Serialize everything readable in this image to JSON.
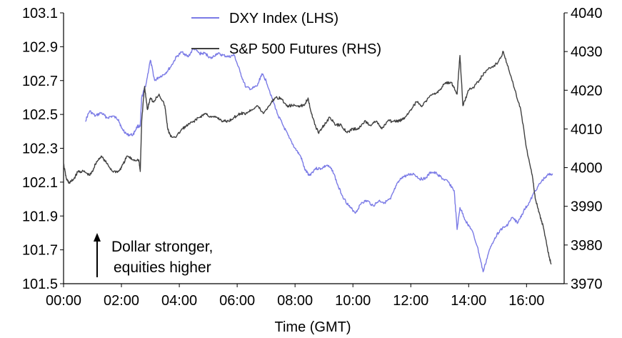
{
  "chart_data": {
    "type": "line",
    "xlabel": "Time (GMT)",
    "x_ticks": [
      "00:00",
      "02:00",
      "04:00",
      "06:00",
      "08:00",
      "10:00",
      "12:00",
      "14:00",
      "16:00"
    ],
    "x_range_hours": [
      0,
      17.3
    ],
    "y_left": {
      "ticks": [
        "101.5",
        "101.7",
        "101.9",
        "102.1",
        "102.3",
        "102.5",
        "102.7",
        "102.9",
        "103.1"
      ],
      "range": [
        101.5,
        103.1
      ]
    },
    "y_right": {
      "ticks": [
        "3970",
        "3980",
        "3990",
        "4000",
        "4010",
        "4020",
        "4030",
        "4040"
      ],
      "range": [
        3970,
        4040
      ]
    },
    "legend": {
      "position": "top-center",
      "items": [
        "DXY Index (LHS)",
        "S&P 500 Futures (RHS)"
      ]
    },
    "annotation": {
      "lines": [
        "Dollar stronger,",
        "equities higher"
      ],
      "arrow": "up"
    },
    "series": [
      {
        "name": "DXY Index (LHS)",
        "axis": "left",
        "color": "#7b7be6",
        "points": [
          [
            0.75,
            102.46
          ],
          [
            0.9,
            102.52
          ],
          [
            1.1,
            102.49
          ],
          [
            1.3,
            102.51
          ],
          [
            1.5,
            102.48
          ],
          [
            1.7,
            102.49
          ],
          [
            1.9,
            102.47
          ],
          [
            2.0,
            102.42
          ],
          [
            2.2,
            102.38
          ],
          [
            2.4,
            102.38
          ],
          [
            2.55,
            102.43
          ],
          [
            2.65,
            102.43
          ],
          [
            2.7,
            102.6
          ],
          [
            2.85,
            102.68
          ],
          [
            3.0,
            102.82
          ],
          [
            3.15,
            102.7
          ],
          [
            3.3,
            102.72
          ],
          [
            3.5,
            102.74
          ],
          [
            3.7,
            102.78
          ],
          [
            3.9,
            102.84
          ],
          [
            4.1,
            102.87
          ],
          [
            4.3,
            102.84
          ],
          [
            4.5,
            102.89
          ],
          [
            4.7,
            102.86
          ],
          [
            4.9,
            102.86
          ],
          [
            5.1,
            102.83
          ],
          [
            5.3,
            102.86
          ],
          [
            5.5,
            102.85
          ],
          [
            5.7,
            102.84
          ],
          [
            5.9,
            102.85
          ],
          [
            6.1,
            102.75
          ],
          [
            6.3,
            102.66
          ],
          [
            6.5,
            102.65
          ],
          [
            6.7,
            102.67
          ],
          [
            6.85,
            102.74
          ],
          [
            7.0,
            102.7
          ],
          [
            7.2,
            102.6
          ],
          [
            7.4,
            102.5
          ],
          [
            7.6,
            102.43
          ],
          [
            7.8,
            102.36
          ],
          [
            8.0,
            102.3
          ],
          [
            8.2,
            102.25
          ],
          [
            8.35,
            102.17
          ],
          [
            8.5,
            102.14
          ],
          [
            8.7,
            102.18
          ],
          [
            8.9,
            102.18
          ],
          [
            9.1,
            102.2
          ],
          [
            9.3,
            102.17
          ],
          [
            9.5,
            102.07
          ],
          [
            9.7,
            102.0
          ],
          [
            9.9,
            101.95
          ],
          [
            10.1,
            101.92
          ],
          [
            10.3,
            101.98
          ],
          [
            10.5,
            101.99
          ],
          [
            10.7,
            101.96
          ],
          [
            10.9,
            101.99
          ],
          [
            11.1,
            101.98
          ],
          [
            11.3,
            102.0
          ],
          [
            11.5,
            102.08
          ],
          [
            11.7,
            102.13
          ],
          [
            11.9,
            102.14
          ],
          [
            12.1,
            102.15
          ],
          [
            12.3,
            102.12
          ],
          [
            12.5,
            102.12
          ],
          [
            12.7,
            102.16
          ],
          [
            12.9,
            102.15
          ],
          [
            13.1,
            102.12
          ],
          [
            13.3,
            102.1
          ],
          [
            13.5,
            102.05
          ],
          [
            13.6,
            101.82
          ],
          [
            13.7,
            101.95
          ],
          [
            13.9,
            101.87
          ],
          [
            14.1,
            101.82
          ],
          [
            14.3,
            101.72
          ],
          [
            14.5,
            101.57
          ],
          [
            14.7,
            101.69
          ],
          [
            14.9,
            101.77
          ],
          [
            15.1,
            101.82
          ],
          [
            15.3,
            101.84
          ],
          [
            15.5,
            101.89
          ],
          [
            15.7,
            101.86
          ],
          [
            15.9,
            101.93
          ],
          [
            16.1,
            101.98
          ],
          [
            16.3,
            102.05
          ],
          [
            16.5,
            102.1
          ],
          [
            16.7,
            102.14
          ],
          [
            16.9,
            102.15
          ]
        ]
      },
      {
        "name": "S&P 500 Futures (RHS)",
        "axis": "right",
        "color": "#404040",
        "points": [
          [
            0.0,
            4001
          ],
          [
            0.1,
            3997
          ],
          [
            0.2,
            3996
          ],
          [
            0.35,
            3997
          ],
          [
            0.5,
            3999
          ],
          [
            0.7,
            3999
          ],
          [
            0.9,
            3998
          ],
          [
            1.0,
            3999
          ],
          [
            1.1,
            4001
          ],
          [
            1.3,
            4003
          ],
          [
            1.5,
            4001
          ],
          [
            1.7,
            3999
          ],
          [
            1.9,
            3999
          ],
          [
            2.0,
            4000
          ],
          [
            2.2,
            4003
          ],
          [
            2.4,
            4002
          ],
          [
            2.6,
            4002
          ],
          [
            2.65,
            3999
          ],
          [
            2.7,
            4012
          ],
          [
            2.8,
            4021
          ],
          [
            2.9,
            4015
          ],
          [
            3.0,
            4018
          ],
          [
            3.1,
            4017
          ],
          [
            3.3,
            4019
          ],
          [
            3.5,
            4016
          ],
          [
            3.6,
            4010
          ],
          [
            3.7,
            4008
          ],
          [
            3.9,
            4008
          ],
          [
            4.1,
            4010
          ],
          [
            4.3,
            4011
          ],
          [
            4.5,
            4012
          ],
          [
            4.7,
            4013
          ],
          [
            4.9,
            4014
          ],
          [
            5.1,
            4013
          ],
          [
            5.3,
            4013
          ],
          [
            5.5,
            4012
          ],
          [
            5.7,
            4012
          ],
          [
            5.9,
            4013
          ],
          [
            6.1,
            4014
          ],
          [
            6.3,
            4014
          ],
          [
            6.5,
            4015
          ],
          [
            6.7,
            4016
          ],
          [
            6.9,
            4014
          ],
          [
            7.1,
            4016
          ],
          [
            7.3,
            4018
          ],
          [
            7.5,
            4018
          ],
          [
            7.7,
            4016
          ],
          [
            7.9,
            4016
          ],
          [
            8.1,
            4016
          ],
          [
            8.3,
            4016
          ],
          [
            8.45,
            4018
          ],
          [
            8.6,
            4013
          ],
          [
            8.8,
            4009
          ],
          [
            9.0,
            4011
          ],
          [
            9.2,
            4013
          ],
          [
            9.4,
            4011
          ],
          [
            9.6,
            4011
          ],
          [
            9.8,
            4009
          ],
          [
            10.0,
            4010
          ],
          [
            10.2,
            4010
          ],
          [
            10.4,
            4012
          ],
          [
            10.6,
            4011
          ],
          [
            10.8,
            4012
          ],
          [
            11.0,
            4010
          ],
          [
            11.2,
            4012
          ],
          [
            11.4,
            4012
          ],
          [
            11.6,
            4012
          ],
          [
            11.8,
            4013
          ],
          [
            12.0,
            4015
          ],
          [
            12.2,
            4017
          ],
          [
            12.4,
            4016
          ],
          [
            12.6,
            4018
          ],
          [
            12.8,
            4019
          ],
          [
            13.0,
            4020
          ],
          [
            13.2,
            4022
          ],
          [
            13.4,
            4022
          ],
          [
            13.6,
            4019
          ],
          [
            13.7,
            4029
          ],
          [
            13.8,
            4016
          ],
          [
            14.0,
            4020
          ],
          [
            14.2,
            4021
          ],
          [
            14.4,
            4023
          ],
          [
            14.6,
            4025
          ],
          [
            14.8,
            4026
          ],
          [
            15.0,
            4027
          ],
          [
            15.2,
            4030
          ],
          [
            15.4,
            4025
          ],
          [
            15.6,
            4020
          ],
          [
            15.8,
            4015
          ],
          [
            16.0,
            4005
          ],
          [
            16.2,
            3998
          ],
          [
            16.3,
            3992
          ],
          [
            16.45,
            3988
          ],
          [
            16.6,
            3984
          ],
          [
            16.75,
            3978
          ],
          [
            16.85,
            3975
          ]
        ]
      }
    ]
  }
}
